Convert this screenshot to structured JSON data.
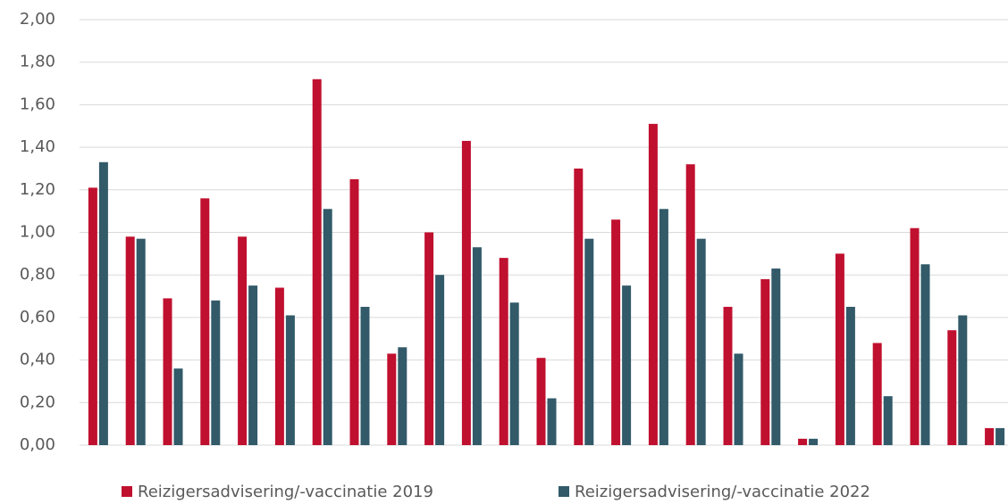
{
  "chart_data": {
    "type": "bar",
    "categories": [
      null,
      null,
      null,
      null,
      null,
      null,
      null,
      null,
      null,
      null,
      null,
      null,
      null,
      null,
      null,
      null,
      null,
      null,
      null,
      null,
      null,
      null,
      null,
      null,
      null
    ],
    "series": [
      {
        "name": "Reizigersadvisering/-vaccinatie 2019",
        "color": "#c0102f",
        "values": [
          1.21,
          0.98,
          0.69,
          1.16,
          0.98,
          0.74,
          1.72,
          1.25,
          0.43,
          1.0,
          1.43,
          0.88,
          0.41,
          1.3,
          1.06,
          1.51,
          1.32,
          0.65,
          0.78,
          0.03,
          0.9,
          0.48,
          1.02,
          0.54,
          0.08
        ]
      },
      {
        "name": "Reizigersadvisering/-vaccinatie 2022",
        "color": "#325a69",
        "values": [
          1.33,
          0.97,
          0.36,
          0.68,
          0.75,
          0.61,
          1.11,
          0.65,
          0.46,
          0.8,
          0.93,
          0.67,
          0.22,
          0.97,
          0.75,
          1.11,
          0.97,
          0.43,
          0.83,
          0.03,
          0.65,
          0.23,
          0.85,
          0.61,
          0.08
        ]
      }
    ],
    "ylim": [
      0,
      2
    ],
    "yticks": [
      {
        "value": 0,
        "label": "0,00"
      },
      {
        "value": 0.2,
        "label": "0,20"
      },
      {
        "value": 0.4,
        "label": "0,40"
      },
      {
        "value": 0.6,
        "label": "0,60"
      },
      {
        "value": 0.8,
        "label": "0,80"
      },
      {
        "value": 1,
        "label": "1,00"
      },
      {
        "value": 1.2,
        "label": "1,20"
      },
      {
        "value": 1.4,
        "label": "1,40"
      },
      {
        "value": 1.6,
        "label": "1,60"
      },
      {
        "value": 1.8,
        "label": "1,80"
      },
      {
        "value": 2,
        "label": "2,00"
      }
    ],
    "grid": true,
    "legend": "bottom"
  }
}
